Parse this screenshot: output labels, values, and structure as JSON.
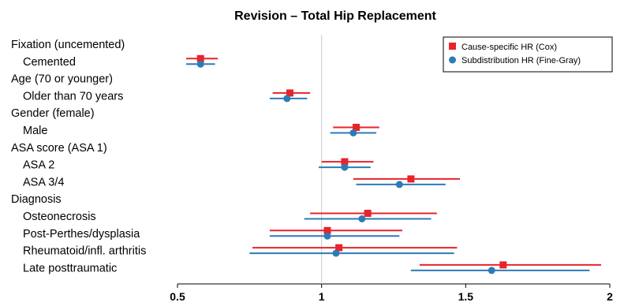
{
  "chart_data": {
    "type": "forest",
    "title": "Revision – Total Hip Replacement",
    "xlim": [
      0.5,
      2
    ],
    "xticks": [
      0.5,
      1,
      1.5,
      2
    ],
    "xtick_labels": [
      "0.5",
      "1",
      "1.5",
      "2"
    ],
    "reference_line": 1,
    "legend_position": "top-right",
    "series": [
      {
        "name": "Cause-specific HR (Cox)",
        "color": "#e8232a",
        "marker": "square"
      },
      {
        "name": "Subdistribution HR (Fine-Gray)",
        "color": "#2c7bb6",
        "marker": "circle"
      }
    ],
    "rows": [
      {
        "label": "Fixation (uncemented)",
        "header": true
      },
      {
        "label": "Cemented",
        "header": false,
        "cox": {
          "hr": 0.58,
          "lo": 0.53,
          "hi": 0.64
        },
        "fg": {
          "hr": 0.58,
          "lo": 0.53,
          "hi": 0.63
        }
      },
      {
        "label": "Age (70 or younger)",
        "header": true
      },
      {
        "label": "Older than 70 years",
        "header": false,
        "cox": {
          "hr": 0.89,
          "lo": 0.83,
          "hi": 0.96
        },
        "fg": {
          "hr": 0.88,
          "lo": 0.82,
          "hi": 0.95
        }
      },
      {
        "label": "Gender (female)",
        "header": true
      },
      {
        "label": "Male",
        "header": false,
        "cox": {
          "hr": 1.12,
          "lo": 1.04,
          "hi": 1.2
        },
        "fg": {
          "hr": 1.11,
          "lo": 1.03,
          "hi": 1.19
        }
      },
      {
        "label": "ASA score (ASA 1)",
        "header": true
      },
      {
        "label": "ASA 2",
        "header": false,
        "cox": {
          "hr": 1.08,
          "lo": 1.0,
          "hi": 1.18
        },
        "fg": {
          "hr": 1.08,
          "lo": 0.99,
          "hi": 1.17
        }
      },
      {
        "label": "ASA 3/4",
        "header": false,
        "cox": {
          "hr": 1.31,
          "lo": 1.11,
          "hi": 1.48
        },
        "fg": {
          "hr": 1.27,
          "lo": 1.12,
          "hi": 1.43
        }
      },
      {
        "label": "Diagnosis",
        "header": true
      },
      {
        "label": "Osteonecrosis",
        "header": false,
        "cox": {
          "hr": 1.16,
          "lo": 0.96,
          "hi": 1.4
        },
        "fg": {
          "hr": 1.14,
          "lo": 0.94,
          "hi": 1.38
        }
      },
      {
        "label": "Post-Perthes/dysplasia",
        "header": false,
        "cox": {
          "hr": 1.02,
          "lo": 0.82,
          "hi": 1.28
        },
        "fg": {
          "hr": 1.02,
          "lo": 0.82,
          "hi": 1.27
        }
      },
      {
        "label": "Rheumatoid/infl. arthritis",
        "header": false,
        "cox": {
          "hr": 1.06,
          "lo": 0.76,
          "hi": 1.47
        },
        "fg": {
          "hr": 1.05,
          "lo": 0.75,
          "hi": 1.46
        }
      },
      {
        "label": "Late posttraumatic",
        "header": false,
        "cox": {
          "hr": 1.63,
          "lo": 1.34,
          "hi": 1.97
        },
        "fg": {
          "hr": 1.59,
          "lo": 1.31,
          "hi": 1.93
        }
      }
    ]
  }
}
